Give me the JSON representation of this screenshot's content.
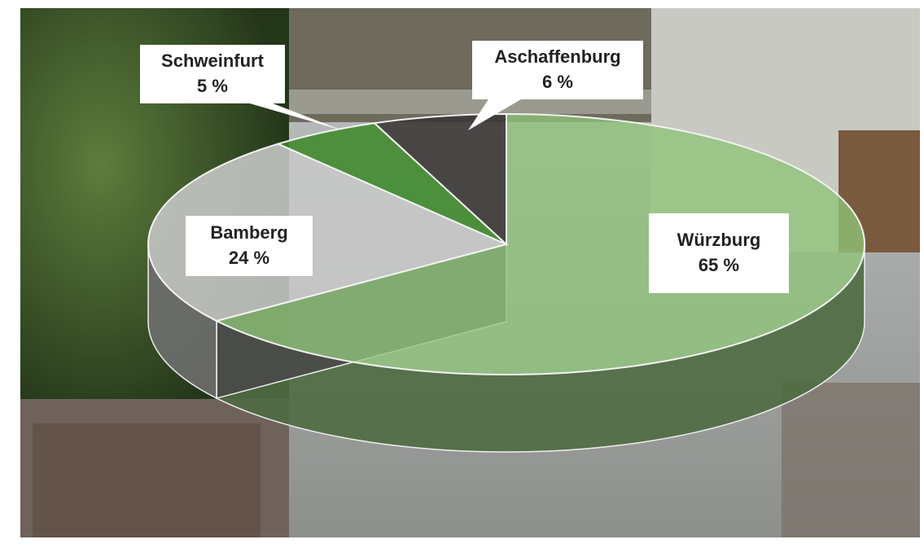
{
  "chart_data": {
    "type": "pie",
    "categories": [
      "Würzburg",
      "Bamberg",
      "Schweinfurt",
      "Aschaffenburg"
    ],
    "values": [
      65,
      24,
      5,
      6
    ],
    "value_labels": [
      "65 %",
      "24 %",
      "5 %",
      "6 %"
    ],
    "colors": [
      "#8fc47a",
      "#c8c8c8",
      "#3f8a2c",
      "#3a3636"
    ]
  }
}
